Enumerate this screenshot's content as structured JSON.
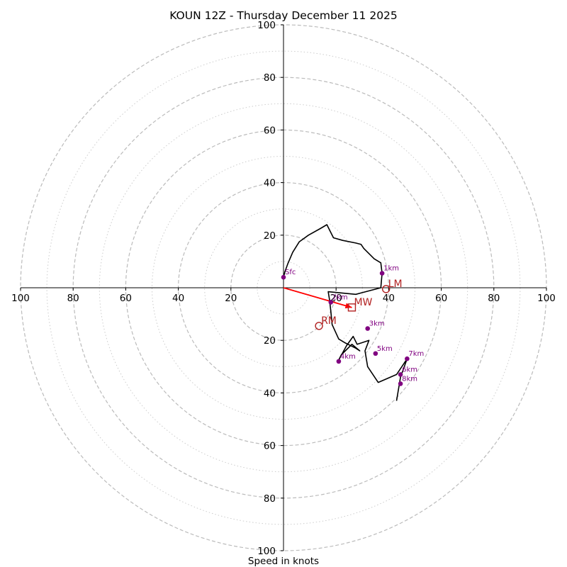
{
  "chart_data": {
    "type": "hodograph",
    "title": "KOUN 12Z - Thursday December 11 2025",
    "xlabel": "Speed in knots",
    "units": "knots",
    "axis_range": [
      -100,
      100
    ],
    "x_tick_labels": [
      "100",
      "80",
      "60",
      "40",
      "20",
      "20",
      "40",
      "60",
      "80",
      "100"
    ],
    "x_tick_values": [
      -100,
      -80,
      -60,
      -40,
      -20,
      20,
      40,
      60,
      80,
      100
    ],
    "y_tick_labels": [
      "100",
      "80",
      "60",
      "40",
      "20",
      "20",
      "40",
      "60",
      "80",
      "100"
    ],
    "y_tick_values": [
      100,
      80,
      60,
      40,
      20,
      -20,
      -40,
      -60,
      -80,
      -100
    ],
    "rings_dashed": [
      20,
      40,
      60,
      80,
      100
    ],
    "rings_dotted": [
      10,
      30,
      50,
      70,
      90
    ],
    "hodograph_trace": {
      "u": [
        0,
        0.5,
        1.6,
        3.5,
        6.0,
        9.5,
        14.0,
        16.5,
        19.0,
        22.5,
        27.5,
        29.5,
        30.5,
        32.5,
        34.5,
        37.0,
        37.5,
        37.0,
        27.5,
        17.0,
        17.5,
        18.0,
        18.5,
        21.0,
        23.5,
        27.5,
        29.0,
        26.0,
        23.5,
        22.0,
        21.0,
        24.0,
        26.5,
        28.0,
        32.5,
        31.0,
        32.0,
        36.0,
        43.0,
        45.0,
        47.0,
        44.5,
        43.0
      ],
      "v": [
        4.0,
        6.0,
        9.0,
        13.5,
        17.5,
        20.0,
        22.5,
        24.0,
        19.0,
        18.0,
        17.0,
        16.5,
        15.0,
        13.0,
        11.0,
        9.5,
        5.5,
        0,
        -2.5,
        -1.5,
        -4.5,
        -9.0,
        -14.0,
        -19.5,
        -21.0,
        -23.0,
        -24.0,
        -21.5,
        -24.0,
        -25.5,
        -27.5,
        -22.0,
        -18.5,
        -21.5,
        -20.0,
        -24.0,
        -30.0,
        -36.0,
        -33.0,
        -30.0,
        -27.0,
        -34.0,
        -43.0
      ]
    },
    "height_markers": [
      {
        "label": "Sfc",
        "u": 0,
        "v": 4.0
      },
      {
        "label": "1km",
        "u": 37.5,
        "v": 5.5
      },
      {
        "label": "2km",
        "u": 18.0,
        "v": -5.5
      },
      {
        "label": "3km",
        "u": 32.0,
        "v": -15.5
      },
      {
        "label": "4km",
        "u": 21.0,
        "v": -28.0
      },
      {
        "label": "5km",
        "u": 35.0,
        "v": -25.0
      },
      {
        "label": "6km",
        "u": 44.5,
        "v": -33.0
      },
      {
        "label": "7km",
        "u": 47.0,
        "v": -27.0
      },
      {
        "label": "8km",
        "u": 44.5,
        "v": -36.5
      }
    ],
    "motion_markers": [
      {
        "label": "LM",
        "u": 39.0,
        "v": -0.5,
        "shape": "circle"
      },
      {
        "label": "RM",
        "u": 13.5,
        "v": -14.5,
        "shape": "circle"
      },
      {
        "label": "MW",
        "u": 26.0,
        "v": -7.5,
        "shape": "square"
      }
    ],
    "shear_vector": {
      "from_u": 0,
      "from_v": 0,
      "to_u": 26.0,
      "to_v": -7.5
    },
    "colors": {
      "trace": "#000000",
      "markers": "#800080",
      "motion": "#b22222",
      "shear": "#ff0000",
      "rings": "#bbbbbb"
    }
  }
}
